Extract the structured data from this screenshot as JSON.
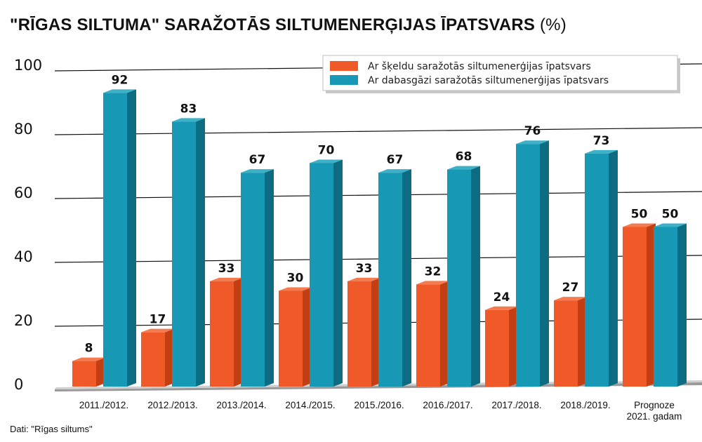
{
  "title": {
    "main": "\"RĪGAS SILTUMA\" SARAŽOTĀS SILTUMENERĢIJAS ĪPATSVARS",
    "unit": "(%)"
  },
  "source": "Dati: \"Rīgas siltums\"",
  "chart_data": {
    "type": "bar",
    "ylim": [
      0,
      100
    ],
    "yticks": [
      0,
      20,
      40,
      60,
      80,
      100
    ],
    "categories": [
      [
        "2011./2012."
      ],
      [
        "2012./2013."
      ],
      [
        "2013./2014."
      ],
      [
        "2014./2015."
      ],
      [
        "2015./2016."
      ],
      [
        "2016./2017."
      ],
      [
        "2017./2018."
      ],
      [
        "2018./2019."
      ],
      [
        "Prognoze",
        "2021. gadam"
      ]
    ],
    "series": [
      {
        "name": "Ar šķeldu saražotās siltumenerģijas īpatsvars",
        "color": "#f05a28",
        "side": "#c23f14",
        "top": "#f47a50",
        "values": [
          8,
          17,
          33,
          30,
          33,
          32,
          24,
          27,
          50
        ]
      },
      {
        "name": "Ar dabasgāzi saražotās siltumenerģijas īpatsvars",
        "color": "#1798b4",
        "side": "#0d6b82",
        "top": "#3eb0c8",
        "values": [
          92,
          83,
          67,
          70,
          67,
          68,
          76,
          73,
          50
        ]
      }
    ],
    "legend_position": "top-right",
    "grid": true
  }
}
